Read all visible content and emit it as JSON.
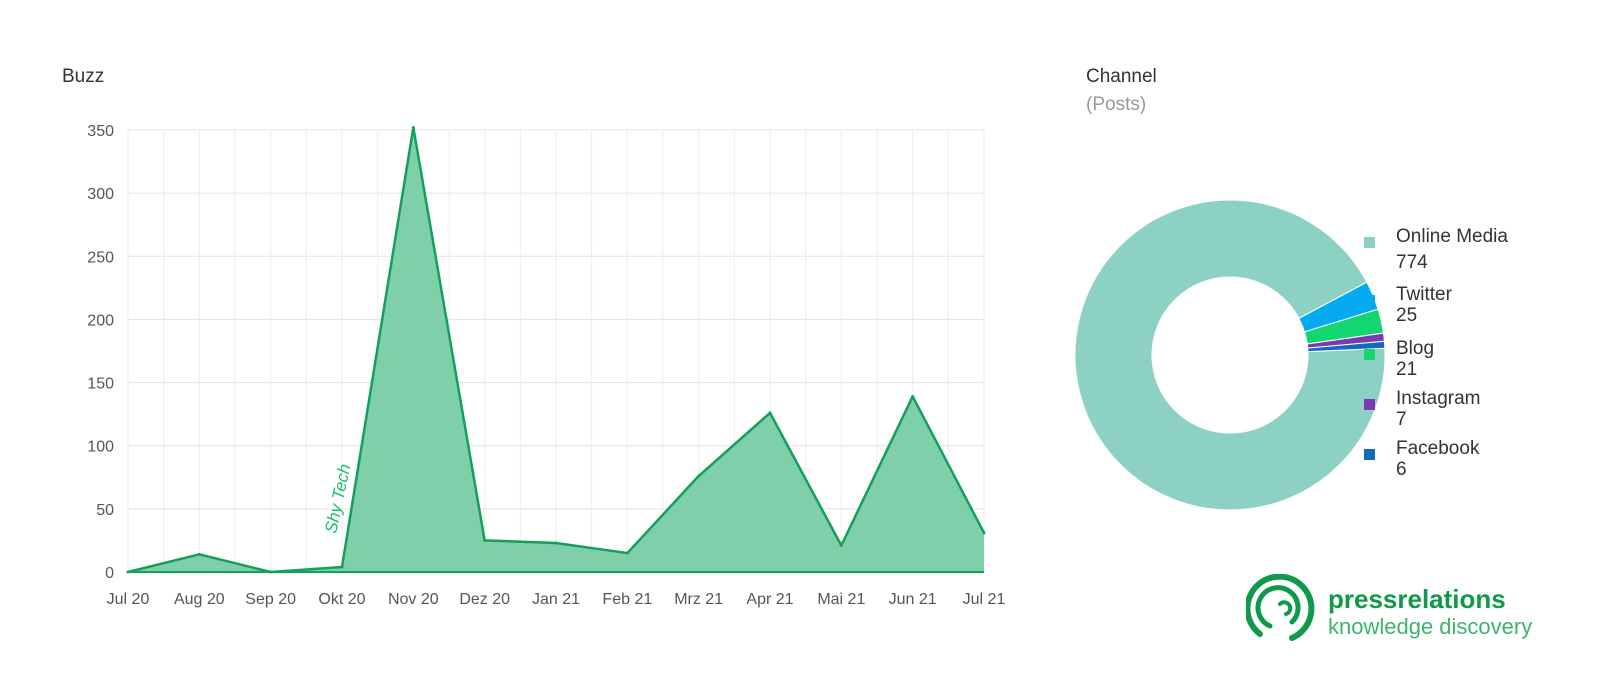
{
  "buzz": {
    "title": "Buzz"
  },
  "channel": {
    "title": "Channel",
    "subtitle": "(Posts)"
  },
  "brand": {
    "name": "pressrelations",
    "tagline": "knowledge discovery",
    "color": "#0e9a4a"
  },
  "chart_data": [
    {
      "type": "area",
      "title": "Buzz",
      "categories": [
        "Jul 20",
        "Aug 20",
        "Sep 20",
        "Okt 20",
        "Nov 20",
        "Dez 20",
        "Jan 21",
        "Feb 21",
        "Mrz 21",
        "Apr 21",
        "Mai 21",
        "Jun 21",
        "Jul 21"
      ],
      "values": [
        0,
        14,
        0,
        4,
        352,
        25,
        23,
        15,
        76,
        126,
        21,
        139,
        31
      ],
      "ylim": [
        0,
        350
      ],
      "yticks": [
        0,
        50,
        100,
        150,
        200,
        250,
        300,
        350
      ],
      "grid": true,
      "fill_color": "#7fd0a8",
      "line_color": "#12a05c",
      "annotations": [
        {
          "text": "Shy Tech",
          "x": "Okt 20",
          "color": "#17c267"
        }
      ]
    },
    {
      "type": "pie",
      "subtype": "donut",
      "title": "Channel",
      "subtitle": "(Posts)",
      "legend_position": "right",
      "slices": [
        {
          "label": "Online Media",
          "value": 774,
          "color": "#8dd1c4"
        },
        {
          "label": "Twitter",
          "value": 25,
          "color": "#06aaee"
        },
        {
          "label": "Blog",
          "value": 21,
          "color": "#14d670"
        },
        {
          "label": "Instagram",
          "value": 7,
          "color": "#7b3ab4"
        },
        {
          "label": "Facebook",
          "value": 6,
          "color": "#1268bd"
        }
      ]
    }
  ]
}
